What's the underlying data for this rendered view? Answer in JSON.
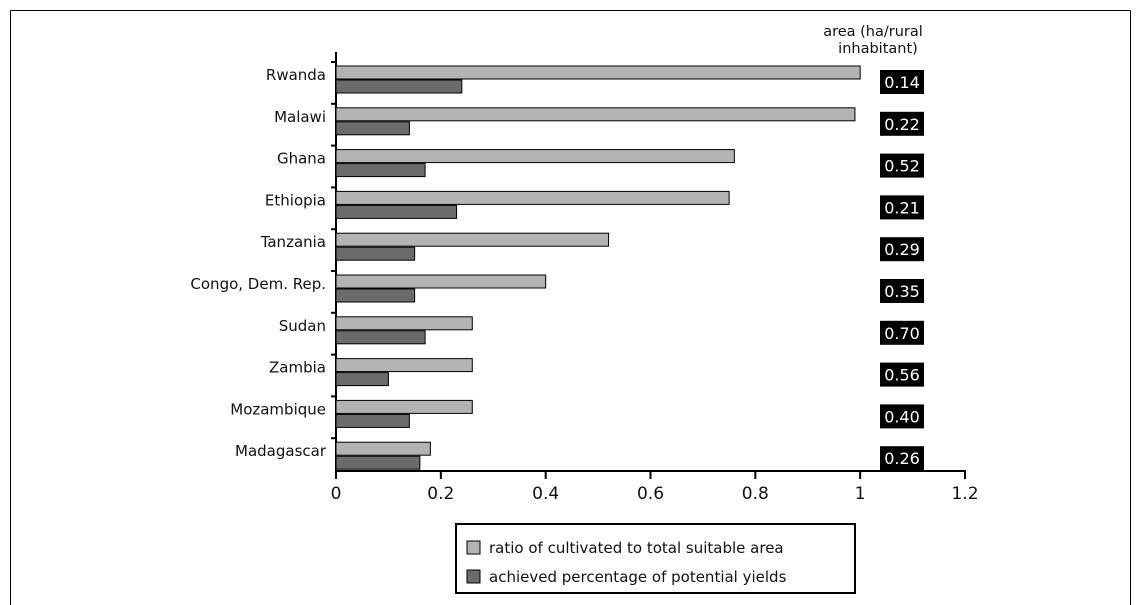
{
  "chart_data": {
    "type": "bar",
    "orientation": "horizontal",
    "categories": [
      "Rwanda",
      "Malawi",
      "Ghana",
      "Ethiopia",
      "Tanzania",
      "Congo, Dem. Rep.",
      "Sudan",
      "Zambia",
      "Mozambique",
      "Madagascar"
    ],
    "series": [
      {
        "name": "ratio of cultivated to total suitable area",
        "color": "#b3b3b3",
        "values": [
          1.0,
          0.99,
          0.76,
          0.75,
          0.52,
          0.4,
          0.26,
          0.26,
          0.26,
          0.18
        ]
      },
      {
        "name": "achieved percentage of potential yields",
        "color": "#6b6b6b",
        "values": [
          0.24,
          0.14,
          0.17,
          0.23,
          0.15,
          0.15,
          0.17,
          0.1,
          0.14,
          0.16
        ]
      }
    ],
    "xlim": [
      0,
      1.2
    ],
    "xticks": [
      "0",
      "0.2",
      "0.4",
      "0.6",
      "0.8",
      "1",
      "1.2"
    ],
    "side_column": {
      "header": [
        "area (ha/rural",
        "inhabitant)"
      ],
      "values": [
        "0.14",
        "0.22",
        "0.52",
        "0.21",
        "0.29",
        "0.35",
        "0.70",
        "0.56",
        "0.40",
        "0.26"
      ]
    },
    "legend_position": "bottom",
    "grid": false
  }
}
